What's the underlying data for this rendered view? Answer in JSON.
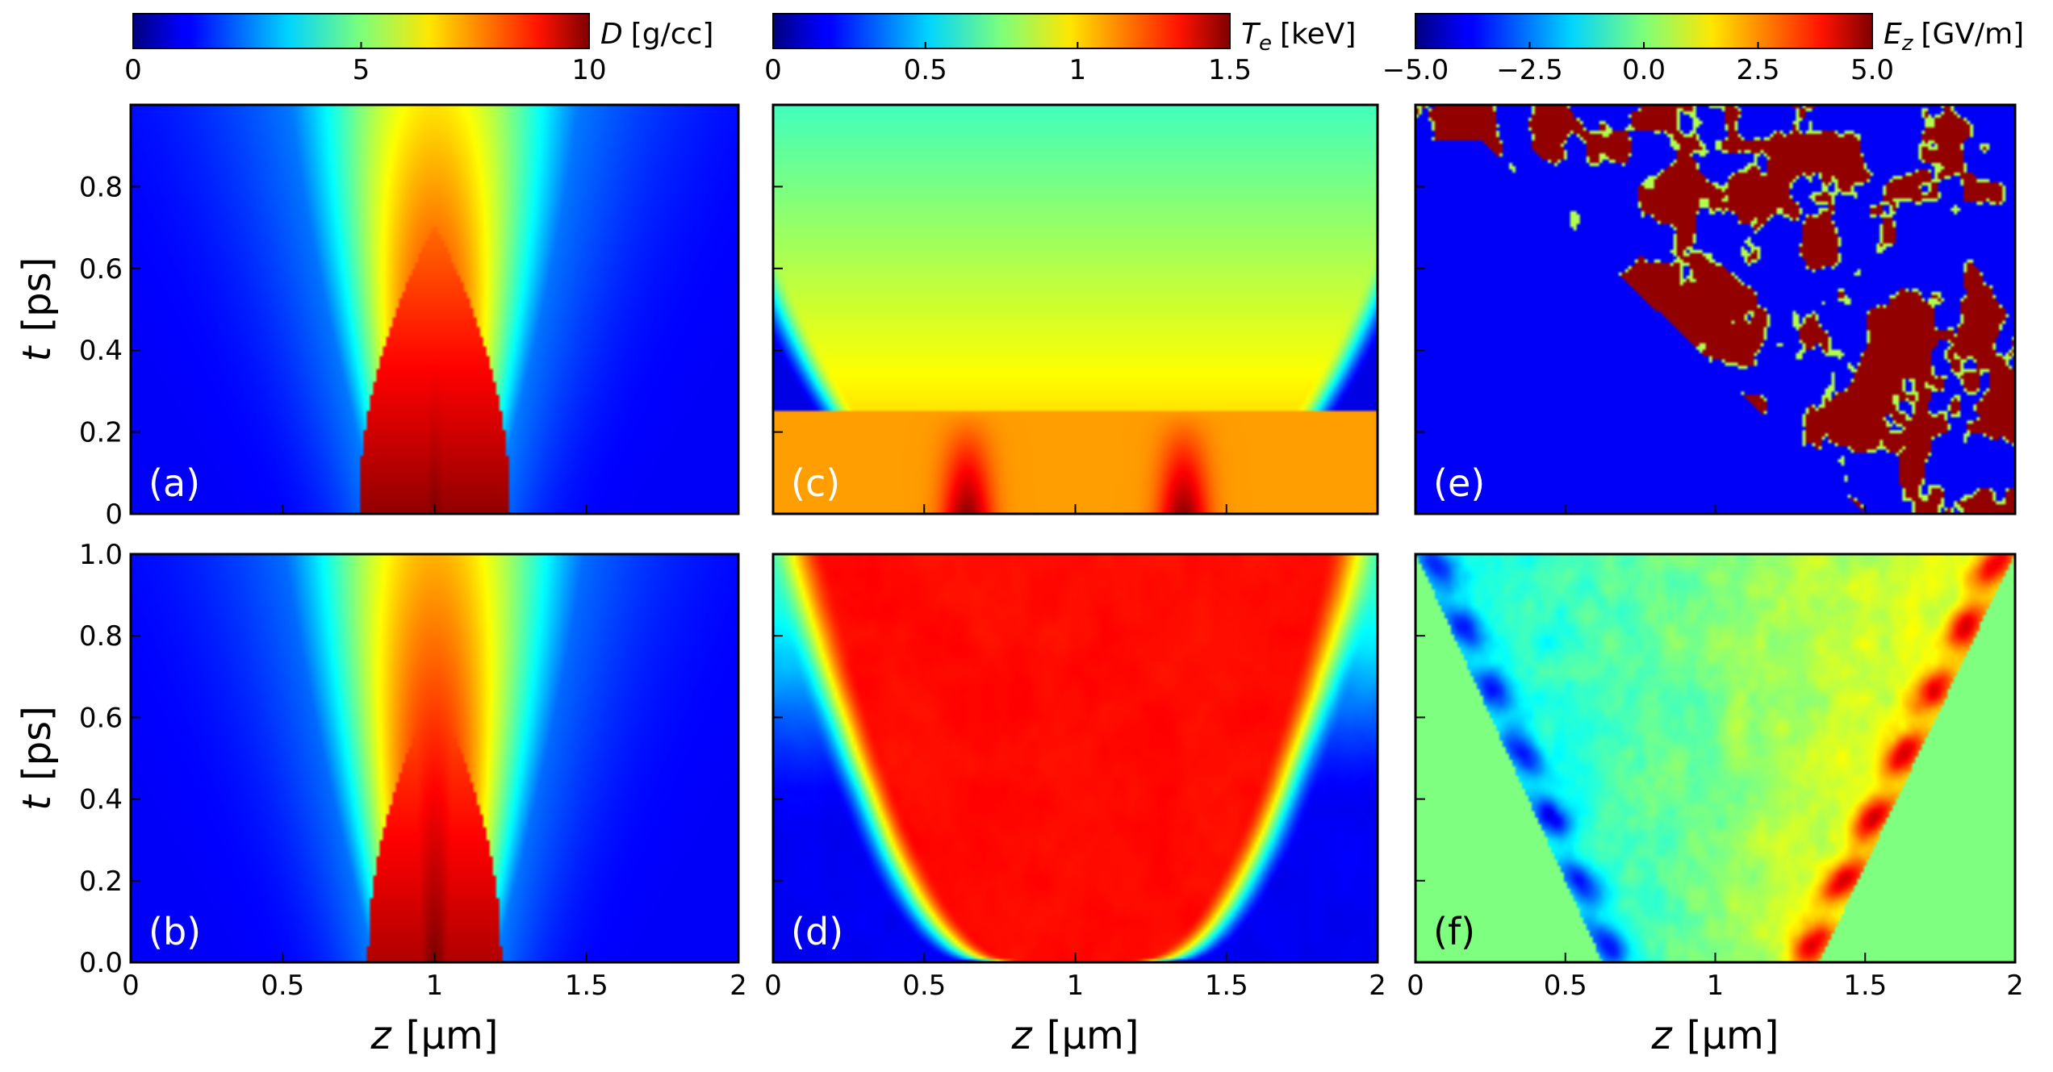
{
  "chart_data": [
    {
      "id": "a",
      "type": "heatmap",
      "panel_label": "(a)",
      "colormap": "jet",
      "quantity": "D",
      "units": "[g/cc]",
      "xlabel": "z",
      "xlabel_units": "[μm]",
      "ylabel": "t",
      "ylabel_units": "[ps]",
      "xlim": [
        0,
        2
      ],
      "ylim": [
        0,
        1
      ],
      "xticks": [],
      "yticks": [
        "0",
        "0.2",
        "0.4",
        "0.6",
        "0.8"
      ],
      "clim": [
        0,
        10
      ],
      "colorbar_ticks": [
        "0",
        "5",
        "10"
      ],
      "description_values": {
        "core_center_z": 1.0,
        "initial_width": [
          0.75,
          1.25
        ],
        "core_max": 10
      }
    },
    {
      "id": "b",
      "type": "heatmap",
      "panel_label": "(b)",
      "colormap": "jet",
      "quantity": "D",
      "units": "[g/cc]",
      "xlabel": "z",
      "xlabel_units": "[μm]",
      "ylabel": "t",
      "ylabel_units": "[ps]",
      "xlim": [
        0,
        2
      ],
      "ylim": [
        0,
        1
      ],
      "xticks": [
        "0",
        "0.5",
        "1",
        "1.5",
        "2"
      ],
      "yticks": [
        "0.0",
        "0.2",
        "0.4",
        "0.6",
        "0.8",
        "1.0"
      ],
      "clim": [
        0,
        10
      ]
    },
    {
      "id": "c",
      "type": "heatmap",
      "panel_label": "(c)",
      "colormap": "jet",
      "quantity": "T",
      "quantity_sub": "e",
      "units": "[keV]",
      "xlim": [
        0,
        2
      ],
      "ylim": [
        0,
        1
      ],
      "clim": [
        0,
        1.5
      ],
      "colorbar_ticks": [
        "0",
        "0.5",
        "1",
        "1.5"
      ]
    },
    {
      "id": "d",
      "type": "heatmap",
      "panel_label": "(d)",
      "colormap": "jet",
      "quantity": "T",
      "quantity_sub": "e",
      "units": "[keV]",
      "xlabel": "z",
      "xlabel_units": "[μm]",
      "xlim": [
        0,
        2
      ],
      "ylim": [
        0,
        1
      ],
      "xticks": [
        "0",
        "0.5",
        "1",
        "1.5",
        "2"
      ],
      "clim": [
        0,
        1.5
      ]
    },
    {
      "id": "e",
      "type": "heatmap",
      "panel_label": "(e)",
      "colormap": "jet",
      "quantity": "E",
      "quantity_sub": "z",
      "units": "[GV/m]",
      "xlim": [
        0,
        2
      ],
      "ylim": [
        0,
        1
      ],
      "clim": [
        -5,
        5
      ],
      "colorbar_ticks": [
        "−5.0",
        "−2.5",
        "0.0",
        "2.5",
        "5.0"
      ]
    },
    {
      "id": "f",
      "type": "heatmap",
      "panel_label": "(f)",
      "colormap": "jet",
      "quantity": "E",
      "quantity_sub": "z",
      "units": "[GV/m]",
      "xlabel": "z",
      "xlabel_units": "[μm]",
      "xlim": [
        0,
        2
      ],
      "ylim": [
        0,
        1
      ],
      "xticks": [
        "0",
        "0.5",
        "1",
        "1.5",
        "2"
      ],
      "clim": [
        -5,
        5
      ]
    }
  ],
  "labels": {
    "ylabel_t": "t",
    "ylabel_units": "[ps]",
    "xlabel_z": "z",
    "xlabel_units": "[μm]",
    "cbar1_sym": "D",
    "cbar1_units": "[g/cc]",
    "cbar2_sym": "T",
    "cbar2_sub": "e",
    "cbar2_units": "[keV]",
    "cbar3_sym": "E",
    "cbar3_sub": "z",
    "cbar3_units": "[GV/m]"
  }
}
